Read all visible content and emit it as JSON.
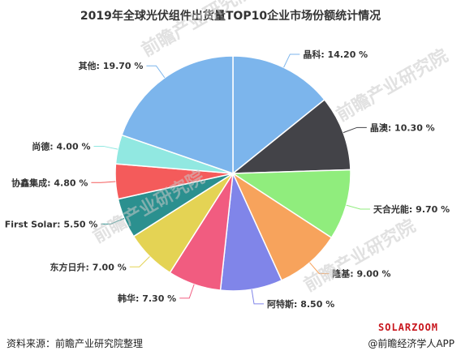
{
  "chart_data": {
    "type": "pie",
    "title": "2019年全球光伏组件出货量TOP10企业市场份额统计情况",
    "categories": [
      "晶科",
      "晶澳",
      "天合光能",
      "隆基",
      "阿特斯",
      "韩华",
      "东方日升",
      "First Solar",
      "协鑫集成",
      "尚德",
      "其他"
    ],
    "values": [
      14.2,
      10.3,
      9.7,
      9.0,
      8.5,
      7.3,
      7.0,
      5.5,
      4.8,
      4.0,
      19.7
    ],
    "labels": [
      "晶科: 14.20 %",
      "晶澳: 10.30 %",
      "天合光能: 9.70 %",
      "隆基: 9.00 %",
      "阿特斯: 8.50 %",
      "韩华: 7.30 %",
      "东方日升: 7.00 %",
      "First Solar: 5.50 %",
      "协鑫集成: 4.80 %",
      "尚德: 4.00 %",
      "其他: 19.70 %"
    ],
    "colors": [
      "#7cb5ec",
      "#434348",
      "#90ed7d",
      "#f7a35c",
      "#8085e9",
      "#f15c80",
      "#e4d354",
      "#2b908f",
      "#f45b5b",
      "#91e8e1",
      "#7cb5ec"
    ],
    "unit": "%"
  },
  "footer": {
    "source": "资料来源：前瞻产业研究院整理",
    "brand": "SOLARZOOM",
    "credit": "@前瞻经济学人APP"
  },
  "watermark": {
    "text": "前瞻产业研究院"
  }
}
